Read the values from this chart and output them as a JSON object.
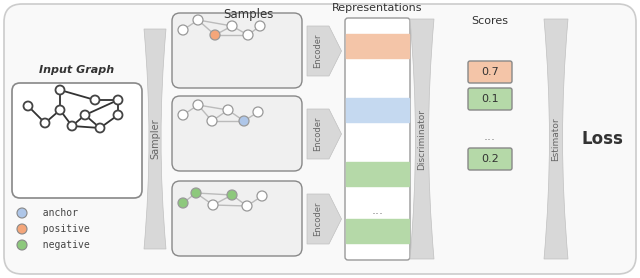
{
  "bg_color": "#f8f8f8",
  "outer_bg": "#ffffff",
  "title": "Samples",
  "repr_title": "Representations",
  "scores_title": "Scores",
  "loss_label": "Loss",
  "sampler_label": "Sampler",
  "encoder_label": "Encoder",
  "discriminator_label": "Discriminator",
  "estimator_label": "Estimator",
  "input_graph_label": "Input Graph",
  "anchor_label": "  anchor",
  "positive_label": "  positive",
  "negative_label": "  negative",
  "anchor_color": "#aec6e8",
  "positive_color": "#f4a67a",
  "negative_color": "#8dc87c",
  "score_values": [
    "0.7",
    "0.1",
    "0.2"
  ],
  "score_colors_bg": [
    "#f4c5a8",
    "#b5d9a8",
    "#b5d9a8"
  ],
  "repr_colors": [
    "#f4c5a8",
    "#c5d9f0",
    "#b5d9a8"
  ],
  "band_color": "#d8d8d8",
  "node_edge": "#999999",
  "edge_color": "#bbbbbb",
  "input_edge_color": "#555555",
  "panel_fill": "#f0f0f0",
  "panel_ec": "#888888",
  "repr_panel_fill": "#ffffff",
  "repr_panel_ec": "#999999"
}
